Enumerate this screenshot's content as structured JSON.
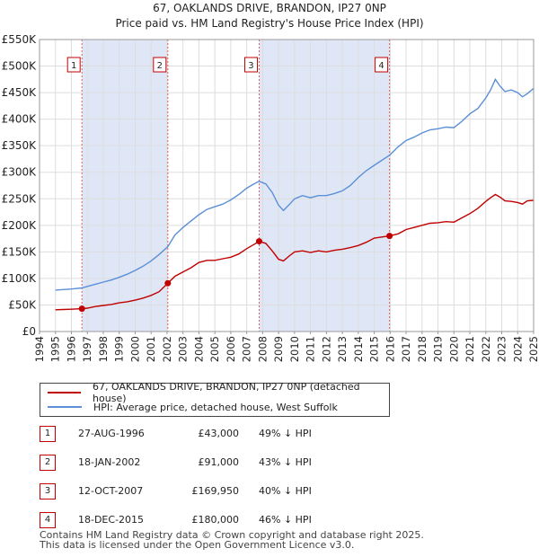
{
  "chart_data": {
    "type": "line",
    "title": "67, OAKLANDS DRIVE, BRANDON, IP27 0NP",
    "subtitle": "Price paid vs. HM Land Registry's House Price Index (HPI)",
    "xlim": [
      1994,
      2025
    ],
    "ylim": [
      0,
      550000
    ],
    "x_ticks": [
      "1994",
      "1995",
      "1996",
      "1997",
      "1998",
      "1999",
      "2000",
      "2001",
      "2002",
      "2003",
      "2004",
      "2005",
      "2006",
      "2007",
      "2008",
      "2009",
      "2010",
      "2011",
      "2012",
      "2013",
      "2014",
      "2015",
      "2016",
      "2017",
      "2018",
      "2019",
      "2020",
      "2021",
      "2022",
      "2023",
      "2024",
      "2025"
    ],
    "y_ticks": [
      {
        "value": 0,
        "label": "£0"
      },
      {
        "value": 50000,
        "label": "£50K"
      },
      {
        "value": 100000,
        "label": "£100K"
      },
      {
        "value": 150000,
        "label": "£150K"
      },
      {
        "value": 200000,
        "label": "£200K"
      },
      {
        "value": 250000,
        "label": "£250K"
      },
      {
        "value": 300000,
        "label": "£300K"
      },
      {
        "value": 350000,
        "label": "£350K"
      },
      {
        "value": 400000,
        "label": "£400K"
      },
      {
        "value": 450000,
        "label": "£450K"
      },
      {
        "value": 500000,
        "label": "£500K"
      },
      {
        "value": 550000,
        "label": "£550K"
      }
    ],
    "series": [
      {
        "name": "67, OAKLANDS DRIVE, BRANDON, IP27 0NP (detached house)",
        "color": "#c00000",
        "points": [
          [
            1995.0,
            41000
          ],
          [
            1995.5,
            41500
          ],
          [
            1996.0,
            42000
          ],
          [
            1996.66,
            43000
          ],
          [
            1997.0,
            44000
          ],
          [
            1997.5,
            47000
          ],
          [
            1998.0,
            49000
          ],
          [
            1998.5,
            51000
          ],
          [
            1999.0,
            54000
          ],
          [
            1999.5,
            56000
          ],
          [
            2000.0,
            59000
          ],
          [
            2000.5,
            63000
          ],
          [
            2001.0,
            68000
          ],
          [
            2001.5,
            75000
          ],
          [
            2002.05,
            91000
          ],
          [
            2002.5,
            104000
          ],
          [
            2003.0,
            112000
          ],
          [
            2003.5,
            120000
          ],
          [
            2004.0,
            130000
          ],
          [
            2004.5,
            134000
          ],
          [
            2005.0,
            134000
          ],
          [
            2005.5,
            137000
          ],
          [
            2006.0,
            140000
          ],
          [
            2006.5,
            146000
          ],
          [
            2007.0,
            156000
          ],
          [
            2007.4,
            163000
          ],
          [
            2007.78,
            169950
          ],
          [
            2008.2,
            166000
          ],
          [
            2008.6,
            152000
          ],
          [
            2009.0,
            136000
          ],
          [
            2009.3,
            133000
          ],
          [
            2009.7,
            143000
          ],
          [
            2010.0,
            150000
          ],
          [
            2010.5,
            152000
          ],
          [
            2011.0,
            149000
          ],
          [
            2011.5,
            152000
          ],
          [
            2012.0,
            150000
          ],
          [
            2012.5,
            153000
          ],
          [
            2013.0,
            155000
          ],
          [
            2013.5,
            158000
          ],
          [
            2014.0,
            162000
          ],
          [
            2014.5,
            168000
          ],
          [
            2015.0,
            176000
          ],
          [
            2015.96,
            180000
          ],
          [
            2016.5,
            184000
          ],
          [
            2017.0,
            192000
          ],
          [
            2017.5,
            196000
          ],
          [
            2018.0,
            200000
          ],
          [
            2018.5,
            204000
          ],
          [
            2019.0,
            205000
          ],
          [
            2019.5,
            207000
          ],
          [
            2020.0,
            206000
          ],
          [
            2020.5,
            214000
          ],
          [
            2021.0,
            222000
          ],
          [
            2021.5,
            232000
          ],
          [
            2022.0,
            245000
          ],
          [
            2022.3,
            252000
          ],
          [
            2022.6,
            258000
          ],
          [
            2022.9,
            253000
          ],
          [
            2023.2,
            246000
          ],
          [
            2023.6,
            245000
          ],
          [
            2024.0,
            243000
          ],
          [
            2024.3,
            240000
          ],
          [
            2024.6,
            246000
          ],
          [
            2025.0,
            247000
          ]
        ]
      },
      {
        "name": "HPI: Average price, detached house, West Suffolk",
        "color": "#5b8fd6",
        "points": [
          [
            1995.0,
            78000
          ],
          [
            1995.5,
            79000
          ],
          [
            1996.0,
            80000
          ],
          [
            1996.66,
            82000
          ],
          [
            1997.0,
            85000
          ],
          [
            1997.5,
            89000
          ],
          [
            1998.0,
            93000
          ],
          [
            1998.5,
            97000
          ],
          [
            1999.0,
            102000
          ],
          [
            1999.5,
            108000
          ],
          [
            2000.0,
            115000
          ],
          [
            2000.5,
            123000
          ],
          [
            2001.0,
            133000
          ],
          [
            2001.5,
            145000
          ],
          [
            2002.05,
            160000
          ],
          [
            2002.5,
            182000
          ],
          [
            2003.0,
            196000
          ],
          [
            2003.5,
            208000
          ],
          [
            2004.0,
            220000
          ],
          [
            2004.5,
            230000
          ],
          [
            2005.0,
            235000
          ],
          [
            2005.5,
            240000
          ],
          [
            2006.0,
            248000
          ],
          [
            2006.5,
            258000
          ],
          [
            2007.0,
            270000
          ],
          [
            2007.4,
            277000
          ],
          [
            2007.78,
            283000
          ],
          [
            2008.2,
            278000
          ],
          [
            2008.6,
            262000
          ],
          [
            2009.0,
            238000
          ],
          [
            2009.3,
            228000
          ],
          [
            2009.7,
            240000
          ],
          [
            2010.0,
            250000
          ],
          [
            2010.5,
            256000
          ],
          [
            2011.0,
            252000
          ],
          [
            2011.5,
            256000
          ],
          [
            2012.0,
            256000
          ],
          [
            2012.5,
            260000
          ],
          [
            2013.0,
            265000
          ],
          [
            2013.5,
            275000
          ],
          [
            2014.0,
            290000
          ],
          [
            2014.5,
            303000
          ],
          [
            2015.0,
            313000
          ],
          [
            2015.96,
            332000
          ],
          [
            2016.5,
            348000
          ],
          [
            2017.0,
            360000
          ],
          [
            2017.5,
            366000
          ],
          [
            2018.0,
            374000
          ],
          [
            2018.5,
            380000
          ],
          [
            2019.0,
            382000
          ],
          [
            2019.5,
            385000
          ],
          [
            2020.0,
            384000
          ],
          [
            2020.5,
            396000
          ],
          [
            2021.0,
            410000
          ],
          [
            2021.5,
            420000
          ],
          [
            2022.0,
            440000
          ],
          [
            2022.3,
            455000
          ],
          [
            2022.6,
            475000
          ],
          [
            2022.9,
            462000
          ],
          [
            2023.2,
            452000
          ],
          [
            2023.6,
            455000
          ],
          [
            2024.0,
            450000
          ],
          [
            2024.3,
            442000
          ],
          [
            2024.6,
            448000
          ],
          [
            2025.0,
            458000
          ]
        ]
      }
    ],
    "sales": [
      {
        "num": "1",
        "x": 1996.66,
        "y": 43000
      },
      {
        "num": "2",
        "x": 2002.05,
        "y": 91000
      },
      {
        "num": "3",
        "x": 2007.78,
        "y": 169950
      },
      {
        "num": "4",
        "x": 2015.96,
        "y": 180000
      }
    ],
    "shaded_bands": [
      [
        1996.66,
        2002.05
      ],
      [
        2007.78,
        2015.96
      ]
    ]
  },
  "legend": {
    "items": [
      {
        "label": "67, OAKLANDS DRIVE, BRANDON, IP27 0NP (detached house)",
        "color": "#c00000"
      },
      {
        "label": "HPI: Average price, detached house, West Suffolk",
        "color": "#5b8fd6"
      }
    ]
  },
  "sales_table": [
    {
      "num": "1",
      "date": "27-AUG-1996",
      "price": "£43,000",
      "hpi": "49% ↓ HPI"
    },
    {
      "num": "2",
      "date": "18-JAN-2002",
      "price": "£91,000",
      "hpi": "43% ↓ HPI"
    },
    {
      "num": "3",
      "date": "12-OCT-2007",
      "price": "£169,950",
      "hpi": "40% ↓ HPI"
    },
    {
      "num": "4",
      "date": "18-DEC-2015",
      "price": "£180,000",
      "hpi": "46% ↓ HPI"
    }
  ],
  "footer": {
    "line1": "Contains HM Land Registry data © Crown copyright and database right 2025.",
    "line2": "This data is licensed under the Open Government Licence v3.0."
  }
}
